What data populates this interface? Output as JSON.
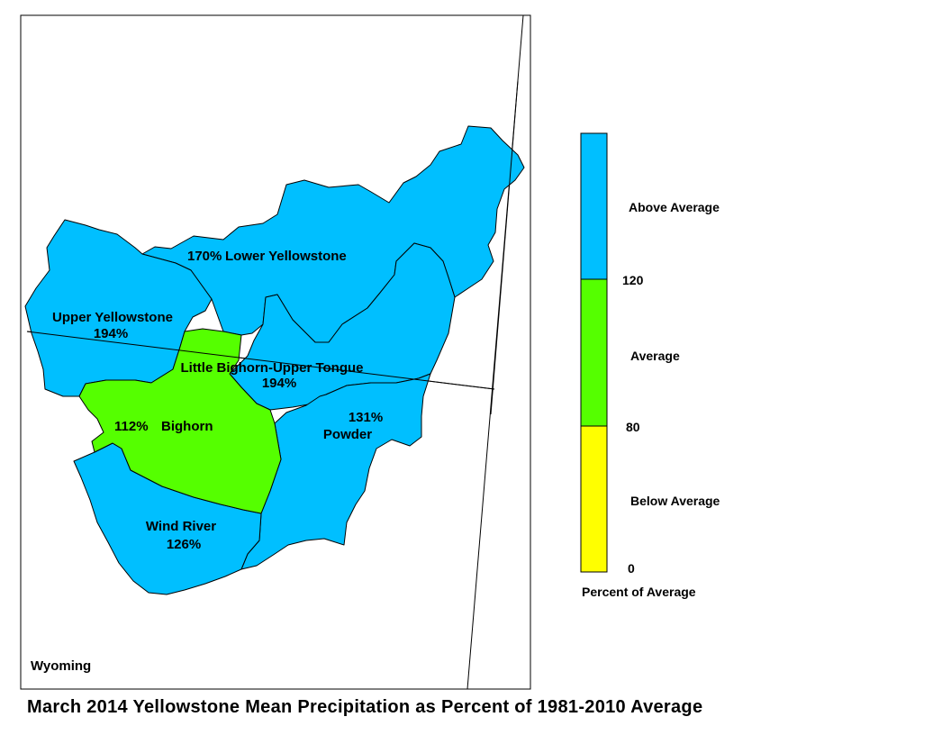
{
  "title": "March 2014 Yellowstone Mean Precipitation as Percent of 1981-2010 Average",
  "state_label": "Wyoming",
  "colors": {
    "above_average": "#00BFFF",
    "average": "#55FF00",
    "below_average": "#FFFF00",
    "background": "#FFFFFF",
    "outline": "#000000"
  },
  "basins": [
    {
      "name": "Lower Yellowstone",
      "percent": "170%",
      "category": "above_average"
    },
    {
      "name": "Upper Yellowstone",
      "percent": "194%",
      "category": "above_average"
    },
    {
      "name": "Little Bighorn-Upper Tongue",
      "percent": "194%",
      "category": "above_average"
    },
    {
      "name": "Bighorn",
      "percent": "112%",
      "category": "average"
    },
    {
      "name": "Powder",
      "percent": "131%",
      "category": "above_average"
    },
    {
      "name": "Wind River",
      "percent": "126%",
      "category": "above_average"
    }
  ],
  "legend": {
    "title": "Percent of Average",
    "classes": [
      {
        "label": "Above Average",
        "min": 120,
        "max": null,
        "color": "#00BFFF"
      },
      {
        "label": "Average",
        "min": 80,
        "max": 120,
        "color": "#55FF00"
      },
      {
        "label": "Below Average",
        "min": 0,
        "max": 80,
        "color": "#FFFF00"
      }
    ],
    "breaks": [
      "120",
      "80",
      "0"
    ]
  }
}
